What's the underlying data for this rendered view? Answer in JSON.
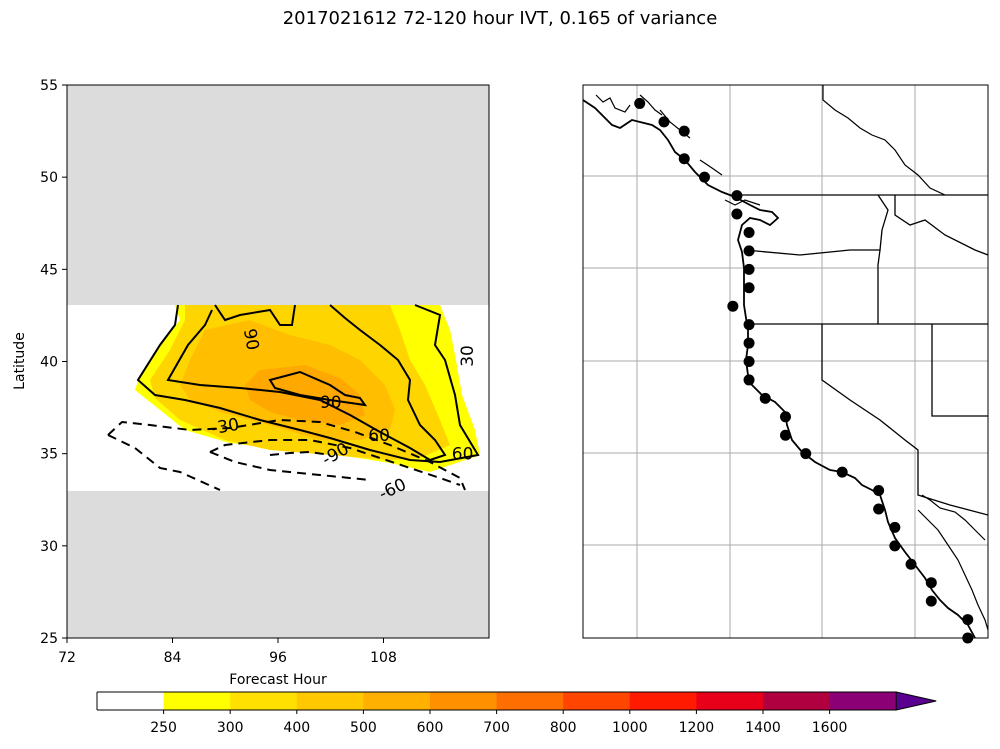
{
  "title": "2017021612 72-120 hour IVT, 0.165 of variance",
  "chart_data": [
    {
      "type": "contour",
      "xlabel": "Forecast Hour",
      "ylabel": "Latitude",
      "xlim": [
        72,
        120
      ],
      "ylim": [
        25,
        55
      ],
      "xticks": [
        72,
        84,
        96,
        108
      ],
      "yticks": [
        25,
        30,
        35,
        40,
        45,
        50,
        55
      ],
      "masked_regions": [
        {
          "lat_range": [
            43,
            55
          ],
          "color": "#dcdcdc"
        },
        {
          "lat_range": [
            25,
            33
          ],
          "color": "#dcdcdc"
        }
      ],
      "filled_levels": [
        {
          "lat": 35.0,
          "hour": 96,
          "value": 250
        },
        {
          "lat": 37.5,
          "hour": 100,
          "value": 400
        },
        {
          "lat": 38.0,
          "hour": 100,
          "value": 500
        }
      ],
      "contour_labels": [
        {
          "text": "90",
          "hour": 93,
          "lat": 41.2,
          "rotate": 80
        },
        {
          "text": "30",
          "hour": 117.5,
          "lat": 40.3,
          "rotate": -90
        },
        {
          "text": "90",
          "hour": 102,
          "lat": 37.8,
          "rotate": 0
        },
        {
          "text": "60",
          "hour": 107.5,
          "lat": 36.0,
          "rotate": 0
        },
        {
          "text": "60",
          "hour": 117,
          "lat": 35.0,
          "rotate": 0
        },
        {
          "text": "-30",
          "hour": 90,
          "lat": 36.5,
          "rotate": -10
        },
        {
          "text": "-90",
          "hour": 102.5,
          "lat": 35.0,
          "rotate": -30
        },
        {
          "text": "-60",
          "hour": 109,
          "lat": 33.1,
          "rotate": -25
        }
      ]
    },
    {
      "type": "scatter",
      "description_free": true,
      "points_latlon_rel": [
        [
          54.0,
          0.14
        ],
        [
          53.0,
          0.2
        ],
        [
          52.5,
          0.25
        ],
        [
          51.0,
          0.25
        ],
        [
          50.0,
          0.3
        ],
        [
          49.0,
          0.38
        ],
        [
          48.0,
          0.38
        ],
        [
          47.0,
          0.41
        ],
        [
          46.0,
          0.41
        ],
        [
          45.0,
          0.41
        ],
        [
          44.0,
          0.41
        ],
        [
          43.0,
          0.37
        ],
        [
          42.0,
          0.41
        ],
        [
          41.0,
          0.41
        ],
        [
          40.0,
          0.41
        ],
        [
          39.0,
          0.41
        ],
        [
          38.0,
          0.45
        ],
        [
          37.0,
          0.5
        ],
        [
          36.0,
          0.5
        ],
        [
          35.0,
          0.55
        ],
        [
          34.0,
          0.64
        ],
        [
          33.0,
          0.73
        ],
        [
          32.0,
          0.73
        ],
        [
          31.0,
          0.77
        ],
        [
          30.0,
          0.77
        ],
        [
          29.0,
          0.81
        ],
        [
          28.0,
          0.86
        ],
        [
          27.0,
          0.86
        ],
        [
          26.0,
          0.95
        ],
        [
          25.0,
          0.95
        ]
      ]
    }
  ],
  "colorbar": {
    "levels": [
      "250",
      "300",
      "400",
      "500",
      "600",
      "700",
      "800",
      "1000",
      "1200",
      "1400",
      "1600"
    ],
    "colors": [
      "#ffffff",
      "#ffff00",
      "#ffe000",
      "#ffc800",
      "#ffb000",
      "#ff9000",
      "#ff6e00",
      "#ff4500",
      "#ff1a00",
      "#e8001a",
      "#b00040",
      "#8b0075",
      "#5a0090"
    ]
  }
}
